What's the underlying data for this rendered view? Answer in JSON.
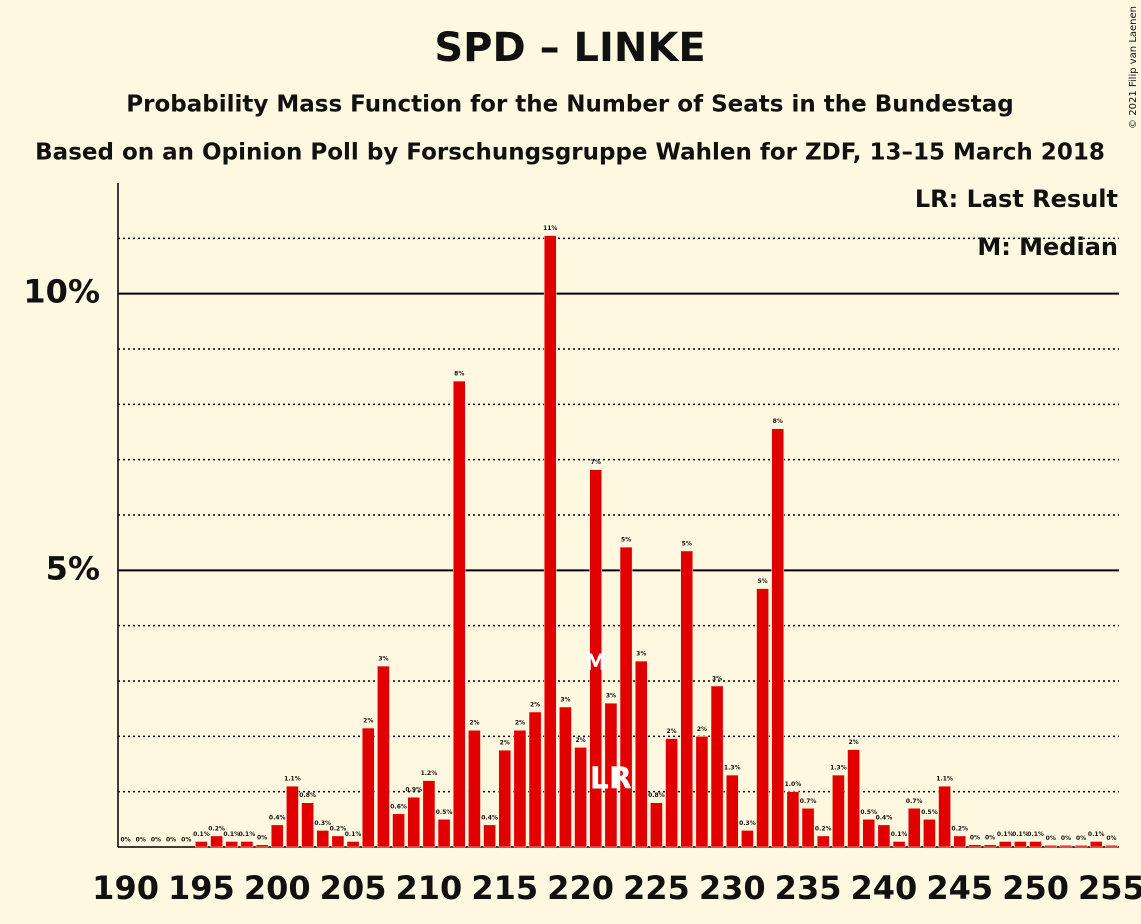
{
  "chart_data": {
    "type": "bar",
    "title": "SPD – LINKE",
    "subtitle": "Probability Mass Function for the Number of Seats in the Bundestag",
    "subtitle2": "Based on an Opinion Poll by Forschungsgruppe Wahlen for ZDF, 13–15 March 2018",
    "copyright": "© 2021 Filip van Laenen",
    "legend": [
      "LR: Last Result",
      "M: Median"
    ],
    "median": {
      "label": "M",
      "x": 221
    },
    "last_result": {
      "label": "LR",
      "x": 222
    },
    "color": "#e00000",
    "x": [
      190,
      191,
      192,
      193,
      194,
      195,
      196,
      197,
      198,
      199,
      200,
      201,
      202,
      203,
      204,
      205,
      206,
      207,
      208,
      209,
      210,
      211,
      212,
      213,
      214,
      215,
      216,
      217,
      218,
      219,
      220,
      221,
      222,
      223,
      224,
      225,
      226,
      227,
      228,
      229,
      230,
      231,
      232,
      233,
      234,
      235,
      236,
      237,
      238,
      239,
      240,
      241,
      242,
      243,
      244,
      245,
      246,
      247,
      248,
      249,
      250,
      251,
      252,
      253,
      254,
      255
    ],
    "values": [
      0,
      0,
      0,
      0,
      0,
      0.1,
      0.2,
      0.1,
      0.1,
      0.04,
      0.4,
      1.1,
      0.8,
      0.3,
      0.2,
      0.1,
      2.15,
      3.27,
      0.6,
      0.9,
      1.2,
      0.5,
      8.42,
      2.11,
      0.4,
      1.75,
      2.11,
      2.44,
      11.05,
      2.53,
      1.8,
      6.82,
      2.6,
      5.42,
      3.36,
      0.8,
      1.96,
      5.35,
      2.0,
      2.91,
      1.3,
      0.3,
      4.67,
      7.56,
      1.0,
      0.7,
      0.2,
      1.3,
      1.76,
      0.5,
      0.4,
      0.1,
      0.7,
      0.5,
      1.1,
      0.2,
      0.04,
      0.04,
      0.1,
      0.1,
      0.1,
      0.03,
      0.03,
      0.03,
      0.1,
      0.03
    ],
    "value_labels": [
      "0%",
      "0%",
      "0%",
      "0%",
      "0%",
      "0.1%",
      "0.2%",
      "0.1%",
      "0.1%",
      "0%",
      "0.4%",
      "1.1%",
      "0.8%",
      "0.3%",
      "0.2%",
      "0.1%",
      "2%",
      "3%",
      "0.6%",
      "0.9%",
      "1.2%",
      "0.5%",
      "8%",
      "2%",
      "0.4%",
      "2%",
      "2%",
      "2%",
      "11%",
      "3%",
      "2%",
      "7%",
      "3%",
      "5%",
      "3%",
      "0.8%",
      "2%",
      "5%",
      "2%",
      "3%",
      "1.3%",
      "0.3%",
      "5%",
      "8%",
      "1.0%",
      "0.7%",
      "0.2%",
      "1.3%",
      "2%",
      "0.5%",
      "0.4%",
      "0.1%",
      "0.7%",
      "0.5%",
      "1.1%",
      "0.2%",
      "0%",
      "0%",
      "0.1%",
      "0.1%",
      "0.1%",
      "0%",
      "0%",
      "0%",
      "0.1%",
      "0%"
    ],
    "xlim": [
      189.5,
      255.5
    ],
    "xticks": [
      190,
      195,
      200,
      205,
      210,
      215,
      220,
      225,
      230,
      235,
      240,
      245,
      250,
      255
    ],
    "ylim": [
      0,
      12
    ],
    "yticks": [
      {
        "value": 5,
        "label": "5%"
      },
      {
        "value": 10,
        "label": "10%"
      }
    ],
    "minor_yticks": [
      1,
      2,
      3,
      4,
      6,
      7,
      8,
      9,
      11
    ]
  }
}
